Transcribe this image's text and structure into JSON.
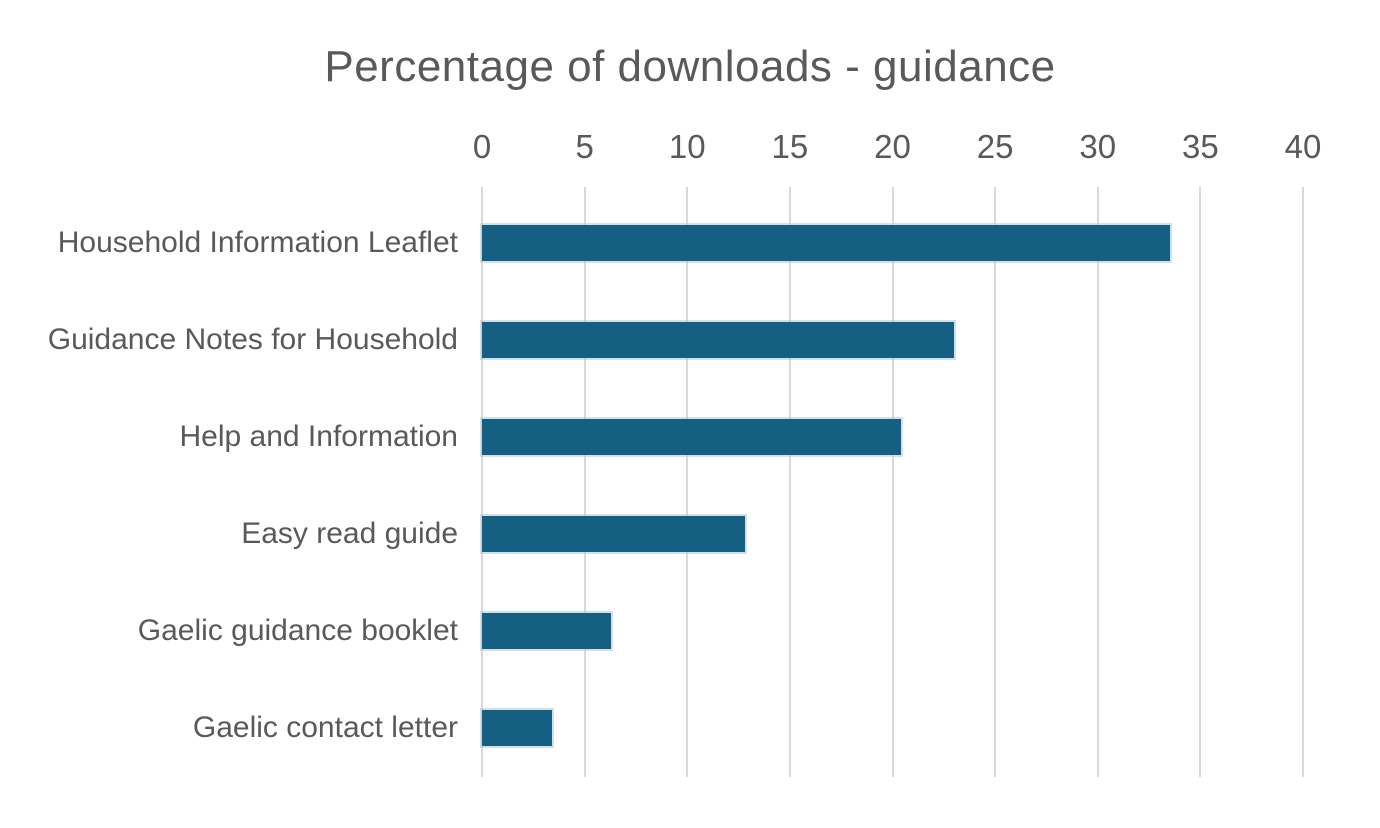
{
  "colors": {
    "bar": "#156082",
    "bar_halo": "#adc7d4",
    "gridline": "#d9d9d9",
    "text": "#595959",
    "background": "#ffffff"
  },
  "chart_data": {
    "type": "bar",
    "orientation": "horizontal",
    "title": "Percentage of downloads - guidance",
    "categories": [
      "Household Information Leaflet",
      "Guidance Notes for Household",
      "Help and Information",
      "Easy read guide",
      "Gaelic guidance booklet",
      "Gaelic contact letter"
    ],
    "values": [
      33.5,
      23,
      20.4,
      12.8,
      6.3,
      3.4
    ],
    "xlabel": "",
    "ylabel": "",
    "xlim": [
      0,
      40
    ],
    "xticks": [
      0,
      5,
      10,
      15,
      20,
      25,
      30,
      35,
      40
    ],
    "grid": true,
    "legend": false,
    "value_axis_position": "top",
    "unit": "percent"
  }
}
